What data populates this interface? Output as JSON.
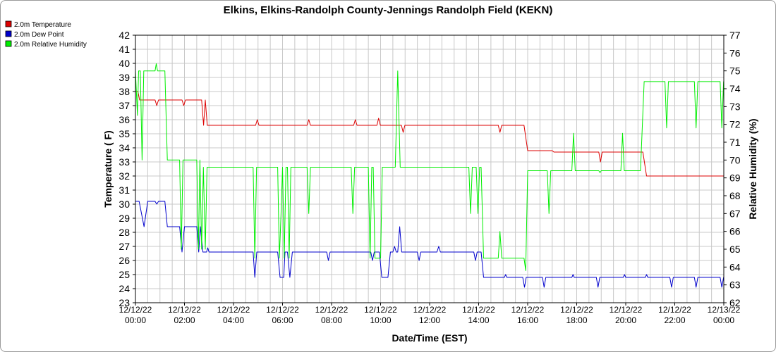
{
  "chart_data": {
    "type": "line",
    "title": "Elkins, Elkins-Randolph County-Jennings Randolph Field (KEKN)",
    "xlabel": "Date/Time (EST)",
    "ylabel": "Temperature ( F)",
    "y2label": "Relative Humidity (%)",
    "grid": true,
    "legend_position": "top-left",
    "xlim": [
      0,
      24
    ],
    "ylim": [
      23,
      42
    ],
    "y2lim": [
      62,
      77
    ],
    "x_ticks": [
      0,
      2,
      4,
      6,
      8,
      10,
      12,
      14,
      16,
      18,
      20,
      22,
      24
    ],
    "x_tick_labels": [
      [
        "12/12/22",
        "00:00"
      ],
      [
        "12/12/22",
        "02:00"
      ],
      [
        "12/12/22",
        "04:00"
      ],
      [
        "12/12/22",
        "06:00"
      ],
      [
        "12/12/22",
        "08:00"
      ],
      [
        "12/12/22",
        "10:00"
      ],
      [
        "12/12/22",
        "12:00"
      ],
      [
        "12/12/22",
        "14:00"
      ],
      [
        "12/12/22",
        "16:00"
      ],
      [
        "12/12/22",
        "18:00"
      ],
      [
        "12/12/22",
        "20:00"
      ],
      [
        "12/12/22",
        "22:00"
      ],
      [
        "12/13/22",
        "00:00"
      ]
    ],
    "y_ticks": [
      23,
      24,
      25,
      26,
      27,
      28,
      29,
      30,
      31,
      32,
      33,
      34,
      35,
      36,
      37,
      38,
      39,
      40,
      41,
      42
    ],
    "y2_ticks": [
      62,
      63,
      64,
      65,
      66,
      67,
      68,
      69,
      70,
      71,
      72,
      73,
      74,
      75,
      76,
      77
    ],
    "series": [
      {
        "name": "2.0m Temperature",
        "color": "#dd0000",
        "axis": "left",
        "points": [
          [
            0.0,
            38.0
          ],
          [
            0.1,
            38.0
          ],
          [
            0.17,
            37.4
          ],
          [
            0.8,
            37.4
          ],
          [
            0.87,
            37.0
          ],
          [
            0.94,
            37.4
          ],
          [
            1.9,
            37.4
          ],
          [
            1.97,
            37.0
          ],
          [
            2.04,
            37.4
          ],
          [
            2.7,
            37.4
          ],
          [
            2.78,
            35.6
          ],
          [
            2.85,
            37.4
          ],
          [
            2.93,
            35.6
          ],
          [
            4.9,
            35.6
          ],
          [
            4.97,
            36.0
          ],
          [
            5.04,
            35.6
          ],
          [
            7.0,
            35.6
          ],
          [
            7.07,
            36.0
          ],
          [
            7.14,
            35.6
          ],
          [
            8.9,
            35.6
          ],
          [
            8.97,
            36.0
          ],
          [
            9.04,
            35.6
          ],
          [
            9.85,
            35.6
          ],
          [
            9.92,
            36.1
          ],
          [
            9.99,
            35.6
          ],
          [
            10.85,
            35.6
          ],
          [
            10.92,
            35.1
          ],
          [
            10.99,
            35.6
          ],
          [
            14.8,
            35.6
          ],
          [
            14.87,
            35.1
          ],
          [
            14.94,
            35.6
          ],
          [
            15.85,
            35.6
          ],
          [
            16.0,
            33.8
          ],
          [
            17.0,
            33.8
          ],
          [
            17.07,
            33.7
          ],
          [
            18.0,
            33.7
          ],
          [
            18.9,
            33.7
          ],
          [
            18.97,
            33.0
          ],
          [
            19.04,
            33.7
          ],
          [
            20.7,
            33.7
          ],
          [
            20.85,
            32.0
          ],
          [
            24.0,
            32.0
          ]
        ]
      },
      {
        "name": "2.0m Dew Point",
        "color": "#0000cc",
        "axis": "left",
        "points": [
          [
            0.0,
            30.2
          ],
          [
            0.15,
            30.2
          ],
          [
            0.35,
            28.4
          ],
          [
            0.5,
            30.2
          ],
          [
            0.8,
            30.2
          ],
          [
            0.87,
            30.0
          ],
          [
            0.94,
            30.2
          ],
          [
            1.2,
            30.2
          ],
          [
            1.3,
            28.4
          ],
          [
            1.8,
            28.4
          ],
          [
            1.9,
            26.6
          ],
          [
            2.0,
            28.4
          ],
          [
            2.5,
            28.4
          ],
          [
            2.58,
            26.6
          ],
          [
            2.65,
            28.4
          ],
          [
            2.75,
            26.6
          ],
          [
            2.9,
            26.6
          ],
          [
            2.95,
            26.9
          ],
          [
            3.0,
            26.6
          ],
          [
            4.8,
            26.6
          ],
          [
            4.87,
            24.8
          ],
          [
            4.95,
            26.6
          ],
          [
            5.8,
            26.6
          ],
          [
            5.9,
            24.8
          ],
          [
            6.05,
            24.8
          ],
          [
            6.1,
            26.6
          ],
          [
            6.2,
            26.6
          ],
          [
            6.3,
            24.8
          ],
          [
            6.4,
            26.6
          ],
          [
            7.8,
            26.6
          ],
          [
            7.87,
            26.0
          ],
          [
            7.94,
            26.6
          ],
          [
            9.6,
            26.6
          ],
          [
            9.67,
            26.0
          ],
          [
            9.74,
            26.6
          ],
          [
            9.95,
            26.6
          ],
          [
            10.05,
            24.8
          ],
          [
            10.3,
            24.8
          ],
          [
            10.4,
            26.6
          ],
          [
            10.5,
            26.6
          ],
          [
            10.57,
            27.0
          ],
          [
            10.64,
            26.6
          ],
          [
            10.7,
            26.6
          ],
          [
            10.78,
            28.4
          ],
          [
            10.86,
            26.6
          ],
          [
            11.5,
            26.6
          ],
          [
            11.57,
            26.0
          ],
          [
            11.64,
            26.6
          ],
          [
            12.3,
            26.6
          ],
          [
            12.37,
            27.0
          ],
          [
            12.44,
            26.6
          ],
          [
            13.8,
            26.6
          ],
          [
            13.87,
            26.0
          ],
          [
            13.94,
            26.6
          ],
          [
            14.1,
            26.6
          ],
          [
            14.2,
            24.8
          ],
          [
            15.05,
            24.8
          ],
          [
            15.1,
            25.0
          ],
          [
            15.15,
            24.8
          ],
          [
            15.8,
            24.8
          ],
          [
            15.87,
            24.1
          ],
          [
            15.94,
            24.8
          ],
          [
            16.6,
            24.8
          ],
          [
            16.67,
            24.1
          ],
          [
            16.74,
            24.8
          ],
          [
            17.8,
            24.8
          ],
          [
            17.85,
            25.0
          ],
          [
            17.9,
            24.8
          ],
          [
            18.8,
            24.8
          ],
          [
            18.87,
            24.1
          ],
          [
            18.94,
            24.8
          ],
          [
            19.9,
            24.8
          ],
          [
            19.95,
            25.0
          ],
          [
            20.0,
            24.8
          ],
          [
            20.8,
            24.8
          ],
          [
            20.85,
            25.0
          ],
          [
            20.9,
            24.8
          ],
          [
            21.8,
            24.8
          ],
          [
            21.87,
            24.1
          ],
          [
            21.94,
            24.8
          ],
          [
            22.8,
            24.8
          ],
          [
            22.87,
            24.1
          ],
          [
            22.94,
            24.8
          ],
          [
            23.85,
            24.8
          ],
          [
            23.92,
            24.1
          ],
          [
            23.99,
            24.8
          ],
          [
            24.0,
            24.8
          ]
        ]
      },
      {
        "name": "2.0m Relative Humidity",
        "color": "#00ee00",
        "axis": "right",
        "points": [
          [
            0.0,
            75.0
          ],
          [
            0.08,
            72.5
          ],
          [
            0.13,
            75.0
          ],
          [
            0.2,
            75.0
          ],
          [
            0.27,
            70.0
          ],
          [
            0.34,
            75.0
          ],
          [
            0.8,
            75.0
          ],
          [
            0.85,
            75.4
          ],
          [
            0.9,
            75.0
          ],
          [
            1.2,
            75.0
          ],
          [
            1.3,
            70.0
          ],
          [
            1.8,
            70.0
          ],
          [
            1.87,
            65.0
          ],
          [
            1.94,
            70.0
          ],
          [
            2.5,
            70.0
          ],
          [
            2.57,
            65.0
          ],
          [
            2.63,
            70.0
          ],
          [
            2.7,
            65.0
          ],
          [
            2.77,
            69.6
          ],
          [
            2.85,
            65.0
          ],
          [
            2.92,
            69.6
          ],
          [
            4.8,
            69.6
          ],
          [
            4.87,
            64.5
          ],
          [
            4.94,
            69.6
          ],
          [
            5.8,
            69.6
          ],
          [
            5.87,
            64.5
          ],
          [
            5.94,
            67.0
          ],
          [
            6.0,
            69.6
          ],
          [
            6.07,
            64.5
          ],
          [
            6.14,
            69.6
          ],
          [
            6.2,
            69.6
          ],
          [
            6.27,
            64.5
          ],
          [
            6.34,
            69.6
          ],
          [
            7.0,
            69.6
          ],
          [
            7.07,
            67.0
          ],
          [
            7.14,
            69.6
          ],
          [
            8.8,
            69.6
          ],
          [
            8.87,
            67.0
          ],
          [
            8.94,
            69.6
          ],
          [
            9.5,
            69.6
          ],
          [
            9.57,
            64.5
          ],
          [
            9.64,
            69.6
          ],
          [
            9.7,
            69.6
          ],
          [
            9.77,
            64.5
          ],
          [
            9.84,
            64.5
          ],
          [
            10.0,
            64.5
          ],
          [
            10.07,
            69.6
          ],
          [
            10.14,
            69.6
          ],
          [
            10.6,
            69.6
          ],
          [
            10.7,
            75.0
          ],
          [
            10.8,
            69.6
          ],
          [
            13.6,
            69.6
          ],
          [
            13.67,
            67.0
          ],
          [
            13.74,
            69.6
          ],
          [
            13.9,
            69.6
          ],
          [
            13.97,
            67.0
          ],
          [
            14.04,
            69.6
          ],
          [
            14.1,
            69.6
          ],
          [
            14.2,
            64.5
          ],
          [
            14.8,
            64.5
          ],
          [
            14.87,
            66.0
          ],
          [
            14.94,
            64.5
          ],
          [
            15.85,
            64.5
          ],
          [
            15.92,
            63.8
          ],
          [
            16.0,
            69.4
          ],
          [
            16.8,
            69.4
          ],
          [
            16.87,
            67.0
          ],
          [
            16.94,
            69.4
          ],
          [
            17.8,
            69.4
          ],
          [
            17.87,
            71.5
          ],
          [
            17.94,
            69.4
          ],
          [
            18.9,
            69.4
          ],
          [
            18.95,
            69.3
          ],
          [
            19.0,
            69.4
          ],
          [
            19.8,
            69.4
          ],
          [
            19.87,
            71.5
          ],
          [
            19.94,
            69.4
          ],
          [
            20.6,
            69.4
          ],
          [
            20.75,
            74.4
          ],
          [
            21.6,
            74.4
          ],
          [
            21.67,
            71.8
          ],
          [
            21.74,
            74.4
          ],
          [
            22.8,
            74.4
          ],
          [
            22.87,
            71.8
          ],
          [
            22.94,
            74.4
          ],
          [
            23.85,
            74.4
          ],
          [
            23.92,
            71.8
          ],
          [
            23.99,
            74.4
          ],
          [
            24.0,
            74.4
          ]
        ]
      }
    ]
  }
}
